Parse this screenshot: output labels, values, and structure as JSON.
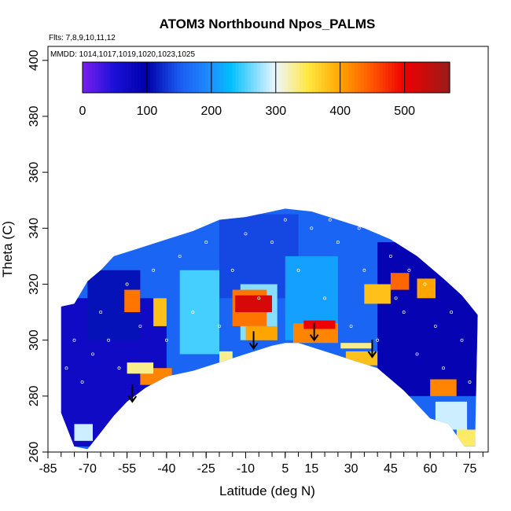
{
  "chart_data": {
    "type": "heatmap",
    "title": "ATOM3 Northbound Npos_PALMS",
    "notes": [
      "Flts: 7,8,9,10,11,12",
      "MMDD: 1014,1017,1019,1020,1023,1025"
    ],
    "xlabel": "Latitude (deg N)",
    "ylabel": "Theta (C)",
    "xlim": [
      -85,
      82
    ],
    "ylim": [
      260,
      405
    ],
    "x_ticks": [
      -85,
      -70,
      -55,
      -40,
      -25,
      -10,
      5,
      15,
      30,
      45,
      60,
      75
    ],
    "x_tick_labels": [
      "-85",
      "-70",
      "-55",
      "-40",
      "-25",
      "-10",
      "5",
      "15",
      "30",
      "45",
      "60",
      "75"
    ],
    "y_ticks": [
      260,
      280,
      300,
      320,
      340,
      360,
      380,
      400
    ],
    "y_tick_labels": [
      "260",
      "280",
      "300",
      "320",
      "340",
      "360",
      "380",
      "400"
    ],
    "colorbar": {
      "range": [
        0,
        570
      ],
      "ticks": [
        0,
        100,
        200,
        300,
        400,
        500
      ],
      "tick_labels": [
        "0",
        "100",
        "200",
        "300",
        "400",
        "500"
      ],
      "stops": [
        {
          "value": 0,
          "color": "#7a1ff0"
        },
        {
          "value": 50,
          "color": "#1a10d8"
        },
        {
          "value": 100,
          "color": "#0000a8"
        },
        {
          "value": 150,
          "color": "#1a5af2"
        },
        {
          "value": 200,
          "color": "#1e90ff"
        },
        {
          "value": 230,
          "color": "#00bfff"
        },
        {
          "value": 300,
          "color": "#eef6ff"
        },
        {
          "value": 350,
          "color": "#ffe840"
        },
        {
          "value": 400,
          "color": "#ffa500"
        },
        {
          "value": 450,
          "color": "#ff5500"
        },
        {
          "value": 500,
          "color": "#ee0000"
        },
        {
          "value": 570,
          "color": "#9b1b1b"
        }
      ]
    },
    "lower_boundary": [
      [
        -80,
        274
      ],
      [
        -75,
        262
      ],
      [
        -70,
        261
      ],
      [
        -65,
        267
      ],
      [
        -60,
        273
      ],
      [
        -55,
        278
      ],
      [
        -48,
        283
      ],
      [
        -40,
        287
      ],
      [
        -30,
        289
      ],
      [
        -20,
        292
      ],
      [
        -10,
        295
      ],
      [
        0,
        298
      ],
      [
        5,
        299
      ],
      [
        10,
        299
      ],
      [
        20,
        296
      ],
      [
        30,
        293
      ],
      [
        40,
        290
      ],
      [
        50,
        282
      ],
      [
        60,
        272
      ],
      [
        67,
        270
      ],
      [
        73,
        262
      ],
      [
        77,
        262
      ]
    ],
    "upper_boundary": [
      [
        -80,
        312
      ],
      [
        -75,
        313
      ],
      [
        -70,
        321
      ],
      [
        -65,
        325
      ],
      [
        -60,
        330
      ],
      [
        -50,
        333
      ],
      [
        -40,
        336
      ],
      [
        -30,
        339
      ],
      [
        -20,
        343
      ],
      [
        -10,
        344
      ],
      [
        0,
        346
      ],
      [
        5,
        347
      ],
      [
        15,
        346
      ],
      [
        25,
        343
      ],
      [
        35,
        340
      ],
      [
        45,
        336
      ],
      [
        55,
        330
      ],
      [
        65,
        322
      ],
      [
        72,
        316
      ],
      [
        78,
        309
      ]
    ],
    "regions": [
      {
        "lat": [
          -82,
          79
        ],
        "theta": [
          260,
          350
        ],
        "value": 160
      },
      {
        "lat": [
          -82,
          -40
        ],
        "theta": [
          262,
          315
        ],
        "value": 70
      },
      {
        "lat": [
          -70,
          -50
        ],
        "theta": [
          300,
          325
        ],
        "value": 110
      },
      {
        "lat": [
          -20,
          10
        ],
        "theta": [
          315,
          345
        ],
        "value": 140
      },
      {
        "lat": [
          40,
          79
        ],
        "theta": [
          280,
          335
        ],
        "value": 90
      },
      {
        "lat": [
          -35,
          -20
        ],
        "theta": [
          295,
          325
        ],
        "value": 250
      },
      {
        "lat": [
          -12,
          2
        ],
        "theta": [
          300,
          320
        ],
        "value": 270
      },
      {
        "lat": [
          5,
          25
        ],
        "theta": [
          300,
          330
        ],
        "value": 210
      },
      {
        "lat": [
          -15,
          -2
        ],
        "theta": [
          305,
          318
        ],
        "value": 430
      },
      {
        "lat": [
          -14,
          0
        ],
        "theta": [
          310,
          316
        ],
        "value": 520
      },
      {
        "lat": [
          -10,
          2
        ],
        "theta": [
          300,
          305
        ],
        "value": 400
      },
      {
        "lat": [
          -56,
          -50
        ],
        "theta": [
          310,
          318
        ],
        "value": 430
      },
      {
        "lat": [
          -45,
          -40
        ],
        "theta": [
          305,
          315
        ],
        "value": 380
      },
      {
        "lat": [
          -50,
          -38
        ],
        "theta": [
          284,
          290
        ],
        "value": 420
      },
      {
        "lat": [
          -55,
          -45
        ],
        "theta": [
          288,
          292
        ],
        "value": 330
      },
      {
        "lat": [
          -20,
          -15
        ],
        "theta": [
          288,
          296
        ],
        "value": 330
      },
      {
        "lat": [
          8,
          25
        ],
        "theta": [
          299,
          306
        ],
        "value": 420
      },
      {
        "lat": [
          12,
          24
        ],
        "theta": [
          304,
          307
        ],
        "value": 500
      },
      {
        "lat": [
          28,
          40
        ],
        "theta": [
          291,
          296
        ],
        "value": 380
      },
      {
        "lat": [
          26,
          38
        ],
        "theta": [
          297,
          299
        ],
        "value": 330
      },
      {
        "lat": [
          35,
          45
        ],
        "theta": [
          313,
          320
        ],
        "value": 380
      },
      {
        "lat": [
          45,
          52
        ],
        "theta": [
          318,
          324
        ],
        "value": 440
      },
      {
        "lat": [
          55,
          62
        ],
        "theta": [
          315,
          322
        ],
        "value": 400
      },
      {
        "lat": [
          60,
          70
        ],
        "theta": [
          280,
          286
        ],
        "value": 420
      },
      {
        "lat": [
          62,
          74
        ],
        "theta": [
          268,
          278
        ],
        "value": 290
      },
      {
        "lat": [
          -75,
          -68
        ],
        "theta": [
          264,
          270
        ],
        "value": 290
      },
      {
        "lat": [
          70,
          78
        ],
        "theta": [
          262,
          268
        ],
        "value": 340
      }
    ],
    "arrows": [
      {
        "lat": -53,
        "theta": 278
      },
      {
        "lat": -7,
        "theta": 297
      },
      {
        "lat": 16,
        "theta": 300
      },
      {
        "lat": 38,
        "theta": 294
      }
    ],
    "points": [
      {
        "lat": -78,
        "theta": 290
      },
      {
        "lat": -75,
        "theta": 300
      },
      {
        "lat": -72,
        "theta": 285
      },
      {
        "lat": -68,
        "theta": 295
      },
      {
        "lat": -65,
        "theta": 310
      },
      {
        "lat": -62,
        "theta": 300
      },
      {
        "lat": -58,
        "theta": 290
      },
      {
        "lat": -55,
        "theta": 320
      },
      {
        "lat": -50,
        "theta": 305
      },
      {
        "lat": -45,
        "theta": 325
      },
      {
        "lat": -40,
        "theta": 300
      },
      {
        "lat": -35,
        "theta": 330
      },
      {
        "lat": -30,
        "theta": 310
      },
      {
        "lat": -25,
        "theta": 335
      },
      {
        "lat": -20,
        "theta": 305
      },
      {
        "lat": -15,
        "theta": 325
      },
      {
        "lat": -10,
        "theta": 338
      },
      {
        "lat": -5,
        "theta": 315
      },
      {
        "lat": 0,
        "theta": 335
      },
      {
        "lat": 5,
        "theta": 343
      },
      {
        "lat": 10,
        "theta": 325
      },
      {
        "lat": 15,
        "theta": 340
      },
      {
        "lat": 20,
        "theta": 315
      },
      {
        "lat": 25,
        "theta": 335
      },
      {
        "lat": 30,
        "theta": 305
      },
      {
        "lat": 35,
        "theta": 325
      },
      {
        "lat": 40,
        "theta": 300
      },
      {
        "lat": 45,
        "theta": 330
      },
      {
        "lat": 50,
        "theta": 310
      },
      {
        "lat": 55,
        "theta": 295
      },
      {
        "lat": 58,
        "theta": 320
      },
      {
        "lat": 62,
        "theta": 305
      },
      {
        "lat": 65,
        "theta": 290
      },
      {
        "lat": 68,
        "theta": 310
      },
      {
        "lat": 72,
        "theta": 300
      },
      {
        "lat": 75,
        "theta": 285
      },
      {
        "lat": 47,
        "theta": 315
      },
      {
        "lat": 52,
        "theta": 325
      },
      {
        "lat": 60,
        "theta": 330
      },
      {
        "lat": 42,
        "theta": 338
      },
      {
        "lat": 33,
        "theta": 340
      },
      {
        "lat": 22,
        "theta": 343
      }
    ],
    "grid": false,
    "legend": "colorbar top"
  }
}
